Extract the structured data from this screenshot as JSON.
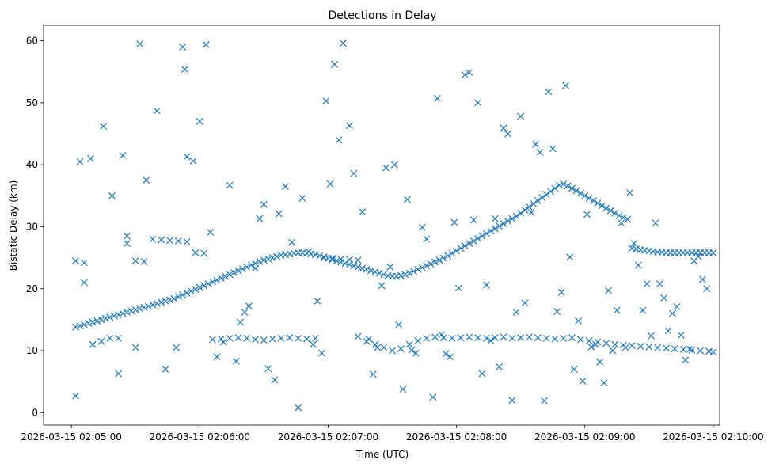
{
  "chart_data": {
    "type": "scatter",
    "title": "Detections in Delay",
    "xlabel": "Time (UTC)",
    "ylabel": "Bistatic Delay (km)",
    "marker": "x",
    "color": "#1f77b4",
    "x_unit": "seconds after 2026-03-15 02:04:00 UTC",
    "xlim": [
      47,
      363
    ],
    "ylim": [
      -2,
      62.5
    ],
    "x_ticks": [
      {
        "value": 60,
        "label": "2026-03-15 02:05:00"
      },
      {
        "value": 120,
        "label": "2026-03-15 02:06:00"
      },
      {
        "value": 180,
        "label": "2026-03-15 02:07:00"
      },
      {
        "value": 240,
        "label": "2026-03-15 02:08:00"
      },
      {
        "value": 300,
        "label": "2026-03-15 02:09:00"
      },
      {
        "value": 360,
        "label": "2026-03-15 02:10:00"
      }
    ],
    "y_ticks": [
      {
        "value": 0,
        "label": "0"
      },
      {
        "value": 10,
        "label": "10"
      },
      {
        "value": 20,
        "label": "20"
      },
      {
        "value": 30,
        "label": "30"
      },
      {
        "value": 40,
        "label": "40"
      },
      {
        "value": 50,
        "label": "50"
      },
      {
        "value": 60,
        "label": "60"
      }
    ],
    "series": [
      {
        "name": "Detections",
        "track_rising": {
          "x": [
            62,
            64,
            66,
            68,
            70,
            72,
            74,
            76,
            78,
            80,
            82,
            84,
            86,
            88,
            90,
            92,
            94,
            96,
            98,
            100,
            102,
            104,
            106,
            108,
            110,
            112,
            114,
            116,
            118,
            120,
            122,
            124,
            126,
            128,
            130,
            132,
            134,
            136,
            138,
            140,
            142,
            144,
            146,
            148,
            150,
            152,
            154,
            156,
            158,
            160,
            162,
            164,
            166,
            168,
            170,
            172,
            174,
            176,
            178,
            180,
            182,
            184,
            186,
            188,
            190,
            192,
            194,
            196,
            198,
            200,
            202,
            204,
            206,
            208,
            210,
            212,
            214,
            216,
            218,
            220,
            222,
            224,
            226,
            228,
            230,
            232,
            234,
            236,
            238,
            240,
            242,
            244,
            246,
            248,
            250,
            252,
            254,
            256,
            258,
            260,
            262,
            264,
            266,
            268,
            270,
            272,
            274,
            276,
            278,
            280,
            282,
            284,
            286,
            288,
            290,
            292,
            294,
            296,
            298,
            300,
            302,
            304,
            306,
            308,
            310,
            312,
            314,
            316,
            318,
            320,
            322,
            324,
            326,
            328,
            330,
            332,
            334,
            336,
            338,
            340,
            342,
            344,
            346,
            348,
            350,
            352,
            354,
            356,
            358,
            360
          ],
          "y": [
            13.8,
            14.0,
            14.2,
            14.4,
            14.6,
            14.8,
            15.0,
            15.2,
            15.4,
            15.6,
            15.8,
            16.0,
            16.2,
            16.4,
            16.6,
            16.8,
            17.0,
            17.2,
            17.4,
            17.6,
            17.8,
            18.0,
            18.2,
            18.4,
            18.7,
            19.0,
            19.3,
            19.6,
            19.9,
            20.2,
            20.5,
            20.8,
            21.1,
            21.4,
            21.7,
            22.0,
            22.3,
            22.6,
            22.9,
            23.2,
            23.5,
            23.8,
            24.1,
            24.4,
            24.6,
            24.8,
            25.0,
            25.2,
            25.4,
            25.5,
            25.6,
            25.7,
            25.8,
            25.8,
            25.7,
            25.6,
            25.5,
            25.3,
            25.1,
            24.9,
            24.7,
            24.5,
            24.3,
            24.1,
            23.9,
            23.7,
            23.5,
            23.3,
            23.1,
            22.9,
            22.7,
            22.5,
            22.3,
            22.1,
            22.0,
            22.0,
            22.1,
            22.3,
            22.5,
            22.8,
            23.1,
            23.4,
            23.7,
            24.0,
            24.3,
            24.6,
            24.9,
            25.3,
            25.7,
            26.1,
            26.5,
            26.9,
            27.3,
            27.7,
            28.1,
            28.5,
            28.9,
            29.3,
            29.7,
            30.1,
            30.5,
            30.9,
            31.3,
            31.7,
            32.2,
            32.7,
            33.2,
            33.7,
            34.2,
            34.7,
            35.2,
            35.7,
            36.2,
            36.7,
            36.9,
            36.6,
            36.2,
            35.8,
            35.4,
            35.0,
            34.6,
            34.2,
            33.8,
            33.4,
            33.0,
            32.6,
            32.2,
            31.8,
            31.5,
            31.2,
            26.5,
            26.4,
            26.3,
            26.2,
            26.1,
            26.0,
            25.9,
            25.9,
            25.8,
            25.8,
            25.8,
            25.8,
            25.8,
            25.8,
            25.8,
            25.8,
            25.8,
            25.8,
            25.8,
            25.8
          ]
        },
        "track_flat": {
          "x": [
            62,
            66,
            70,
            74,
            78,
            82,
            86,
            90,
            94,
            98,
            102,
            106,
            110,
            114,
            118,
            122,
            126,
            130,
            134,
            138,
            142,
            146,
            150,
            154,
            158,
            162,
            166,
            170,
            174,
            178,
            182,
            186,
            190,
            194,
            198,
            202,
            206,
            210,
            214,
            218,
            222,
            226,
            230,
            234,
            238,
            242,
            246,
            250,
            254,
            258,
            262,
            266,
            270,
            274,
            278,
            282,
            286,
            290,
            294,
            298,
            302,
            306,
            310,
            314,
            318,
            322,
            326,
            330,
            334,
            338,
            342,
            346,
            350,
            354,
            358,
            360
          ],
          "y": [
            24.5,
            24.2,
            11.0,
            11.5,
            12.0,
            12.0,
            28.5,
            24.5,
            24.4,
            28.0,
            27.9,
            27.8,
            27.7,
            27.6,
            25.8,
            25.7,
            11.8,
            11.9,
            12.0,
            12.1,
            12.0,
            11.8,
            11.7,
            11.9,
            12.0,
            12.1,
            12.0,
            11.9,
            12.0,
            25.0,
            24.9,
            24.8,
            24.7,
            24.6,
            11.5,
            11.0,
            10.5,
            10.0,
            10.3,
            11.0,
            11.6,
            12.0,
            12.2,
            12.1,
            12.0,
            12.1,
            12.2,
            12.1,
            12.0,
            12.1,
            12.2,
            12.0,
            12.1,
            12.2,
            12.1,
            12.0,
            11.9,
            12.0,
            12.1,
            11.8,
            11.6,
            11.4,
            11.2,
            11.0,
            10.9,
            10.8,
            10.7,
            10.6,
            10.5,
            10.4,
            10.3,
            10.2,
            10.1,
            10.0,
            9.9,
            9.8
          ]
        },
        "scatter_noise": {
          "x": [
            62,
            64,
            66,
            69,
            75,
            79,
            82,
            84,
            86,
            90,
            92,
            95,
            100,
            104,
            109,
            112,
            113,
            114,
            117,
            120,
            123,
            125,
            128,
            131,
            134,
            137,
            139,
            141,
            143,
            146,
            148,
            150,
            152,
            155,
            157,
            160,
            163,
            166,
            168,
            171,
            173,
            175,
            177,
            179,
            181,
            183,
            185,
            187,
            190,
            192,
            194,
            196,
            199,
            201,
            203,
            205,
            207,
            209,
            211,
            213,
            215,
            217,
            219,
            221,
            224,
            226,
            229,
            231,
            233,
            235,
            237,
            239,
            241,
            244,
            246,
            248,
            250,
            252,
            254,
            256,
            258,
            260,
            262,
            264,
            266,
            268,
            270,
            272,
            275,
            277,
            279,
            281,
            283,
            285,
            287,
            289,
            291,
            293,
            295,
            297,
            299,
            301,
            303,
            305,
            307,
            309,
            311,
            313,
            315,
            317,
            319,
            321,
            323,
            325,
            327,
            329,
            331,
            333,
            335,
            337,
            339,
            341,
            343,
            345,
            347,
            349,
            351,
            353,
            355,
            357
          ],
          "y": [
            2.7,
            40.5,
            21.0,
            41.0,
            46.2,
            35.0,
            6.3,
            41.5,
            27.3,
            10.5,
            59.5,
            37.5,
            48.7,
            7.0,
            10.5,
            59.0,
            55.4,
            41.3,
            40.6,
            47.0,
            59.4,
            29.1,
            9.0,
            11.4,
            36.7,
            8.3,
            14.6,
            16.2,
            17.2,
            23.3,
            31.3,
            33.6,
            7.1,
            5.3,
            32.1,
            36.5,
            27.5,
            0.8,
            34.6,
            26.0,
            11.0,
            18.0,
            9.6,
            50.3,
            36.9,
            56.2,
            44.0,
            59.6,
            46.3,
            38.6,
            12.3,
            32.4,
            11.9,
            6.2,
            10.5,
            20.5,
            39.5,
            23.5,
            40.0,
            14.2,
            3.8,
            34.4,
            10.1,
            9.6,
            29.9,
            28.0,
            2.5,
            50.7,
            12.6,
            9.5,
            9.0,
            30.7,
            20.1,
            54.5,
            54.9,
            31.1,
            50.0,
            6.3,
            20.6,
            11.6,
            31.3,
            7.4,
            45.9,
            45.0,
            2.0,
            16.2,
            47.8,
            17.7,
            32.3,
            43.3,
            42.0,
            1.9,
            51.8,
            42.6,
            16.3,
            19.4,
            52.8,
            25.1,
            7.0,
            14.8,
            5.1,
            32.0,
            10.6,
            11.0,
            8.2,
            4.8,
            19.7,
            10.0,
            16.5,
            30.6,
            10.5,
            35.5,
            27.3,
            23.8,
            16.5,
            20.8,
            12.4,
            30.6,
            20.8,
            18.5,
            13.2,
            16.0,
            17.1,
            12.5,
            8.5,
            10.2,
            24.5,
            25.2,
            21.5,
            20.0
          ]
        }
      }
    ]
  }
}
